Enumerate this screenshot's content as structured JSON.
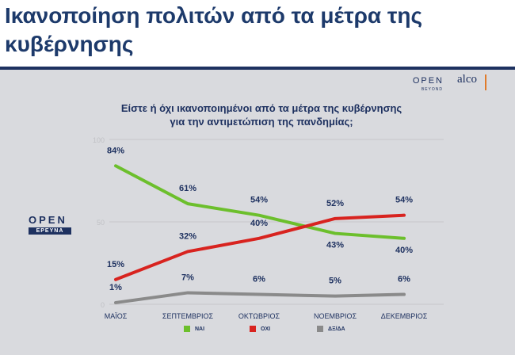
{
  "headline": "Ικανοποίηση πολιτών από τα μέτρα της κυβέρνησης",
  "branding": {
    "open": "OPEN",
    "beyond": "BEYOND",
    "alco": "alco",
    "open_logo": "OPEN",
    "open_logo_sub": "ΕΡΕΥΝΑ"
  },
  "question": {
    "line1": "Είστε ή όχι ικανοποιημένοι από τα μέτρα της κυβέρνησης",
    "line2": "για την αντιμετώπιση της πανδημίας;"
  },
  "chart_data": {
    "type": "line",
    "title": "Είστε ή όχι ικανοποιημένοι από τα μέτρα της κυβέρνησης για την αντιμετώπιση της πανδημίας;",
    "categories": [
      "ΜΑΪΟΣ",
      "ΣΕΠΤΕΜΒΡΙΟΣ",
      "ΟΚΤΩΒΡΙΟΣ",
      "ΝΟΕΜΒΡΙΟΣ",
      "ΔΕΚΕΜΒΡΙΟΣ"
    ],
    "yticks": [
      "0",
      "50",
      "100"
    ],
    "ylim": [
      0,
      100
    ],
    "series": [
      {
        "name": "ΝΑΙ",
        "color": "#6cbf2c",
        "values": [
          84,
          61,
          54,
          43,
          40
        ],
        "labels": [
          "84%",
          "61%",
          "54%",
          "43%",
          "40%"
        ]
      },
      {
        "name": "ΟΧΙ",
        "color": "#d8231f",
        "values": [
          15,
          32,
          40,
          52,
          54
        ],
        "labels": [
          "15%",
          "32%",
          "40%",
          "52%",
          "54%"
        ]
      },
      {
        "name": "ΔΞ/ΔΑ",
        "color": "#8a8a8a",
        "values": [
          1,
          7,
          6,
          5,
          6
        ],
        "labels": [
          "1%",
          "7%",
          "6%",
          "5%",
          "6%"
        ]
      }
    ],
    "legend_position": "bottom"
  }
}
